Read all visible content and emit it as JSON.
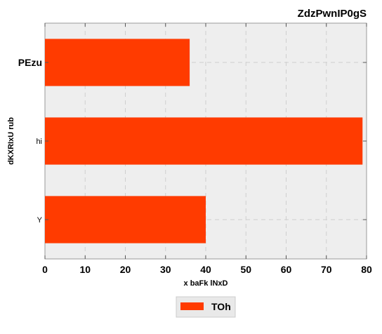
{
  "chart_data": {
    "type": "bar",
    "orientation": "horizontal",
    "title": "ZdzPwnIP0gS",
    "xlabel": "x baFk lNxD",
    "ylabel": "dKXRIxU rub",
    "categories": [
      "PEzu",
      "hi",
      "Y"
    ],
    "series": [
      {
        "name": "TOh",
        "values": [
          36,
          79,
          40
        ],
        "color": "#ff3b00"
      }
    ],
    "xlim": [
      0,
      80
    ],
    "xticks": [
      0,
      10,
      20,
      30,
      40,
      50,
      60,
      70,
      80
    ],
    "grid": true,
    "legend_position": "bottom-center",
    "bold_category": "PEzu",
    "plot_background": "#eeeeee"
  }
}
